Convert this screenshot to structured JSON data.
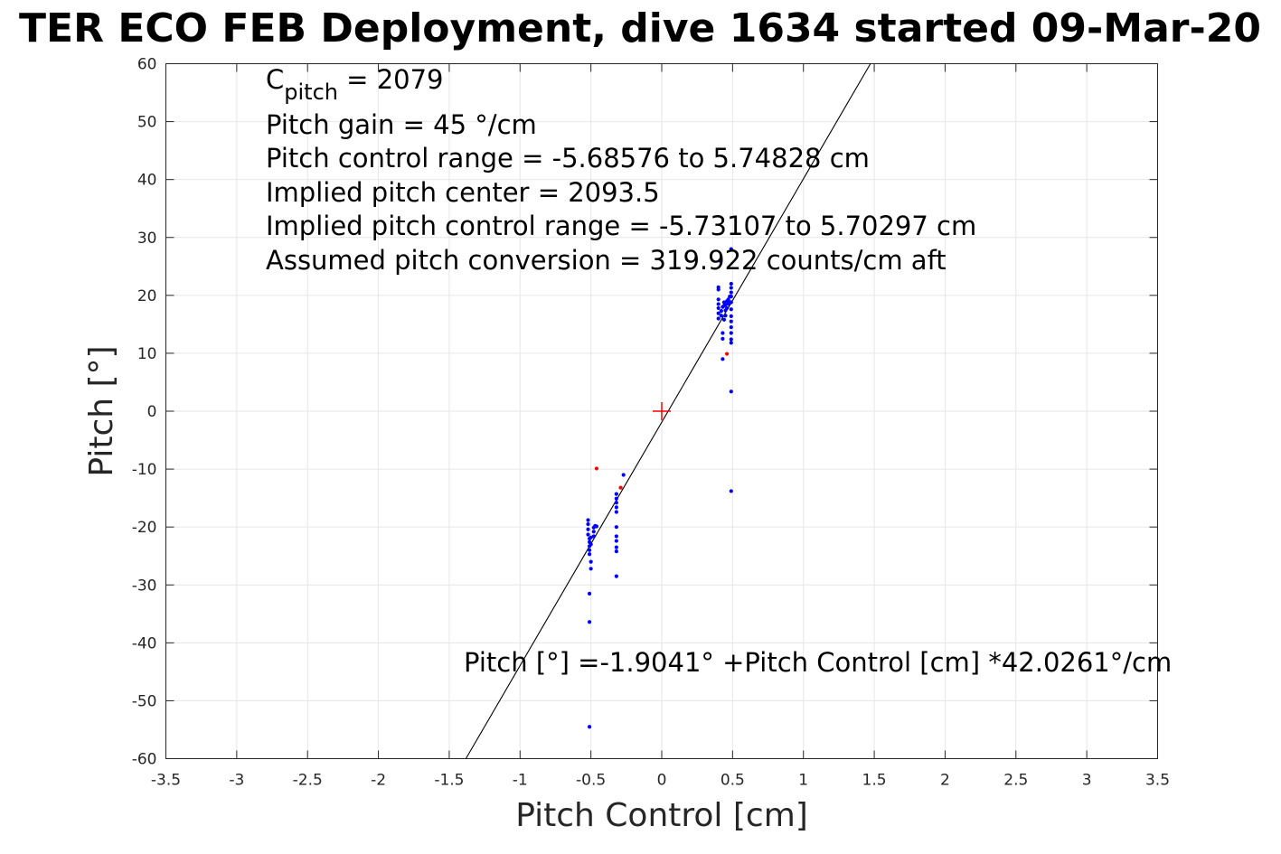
{
  "chart_data": {
    "type": "scatter",
    "title": "TER ECO FEB Deployment, dive 1634 started 09-Mar-20",
    "xlabel": "Pitch Control [cm]",
    "ylabel": "Pitch [°]",
    "xlim": [
      -3.5,
      3.5
    ],
    "ylim": [
      -60,
      60
    ],
    "grid": true,
    "xticks": [
      "-3.5",
      "-3",
      "-2.5",
      "-2",
      "-1.5",
      "-1",
      "-0.5",
      "0",
      "0.5",
      "1",
      "1.5",
      "2",
      "2.5",
      "3",
      "3.5"
    ],
    "yticks": [
      "60",
      "50",
      "40",
      "30",
      "20",
      "10",
      "0",
      "-10",
      "-20",
      "-30",
      "-40",
      "-50",
      "-60"
    ],
    "annotations": {
      "cpitch_base": "C",
      "cpitch_sub": "pitch",
      "cpitch_value": " = 2079",
      "line2": "Pitch gain = 45 °/cm",
      "line3": "Pitch control range = -5.68576 to 5.74828 cm",
      "line4": "Implied pitch center = 2093.5",
      "line5": "Implied pitch control range = -5.73107 to 5.70297 cm",
      "line6": "Assumed pitch conversion = 319.922 counts/cm aft",
      "fit_label": "Pitch [°] =-1.9041° +Pitch Control [cm] *42.0261°/cm"
    },
    "fit": {
      "intercept": -1.9041,
      "slope": 42.0261,
      "color": "#000000"
    },
    "center_marker": {
      "x": 0,
      "y": 0,
      "color": "#ff0000"
    },
    "series": [
      {
        "color": "#0000ff",
        "points": [
          [
            -0.52,
            -18.8
          ],
          [
            -0.52,
            -19.5
          ],
          [
            -0.52,
            -20.4
          ],
          [
            -0.52,
            -21.3
          ],
          [
            -0.51,
            -22.0
          ],
          [
            -0.51,
            -22.6
          ],
          [
            -0.51,
            -23.3
          ],
          [
            -0.51,
            -24.0
          ],
          [
            -0.51,
            -24.7
          ],
          [
            -0.5,
            -21.8
          ],
          [
            -0.5,
            -23.0
          ],
          [
            -0.5,
            -26.0
          ],
          [
            -0.5,
            -27.2
          ],
          [
            -0.51,
            -31.5
          ],
          [
            -0.51,
            -36.4
          ],
          [
            -0.51,
            -54.5
          ],
          [
            -0.48,
            -20.1
          ],
          [
            -0.48,
            -20.8
          ],
          [
            -0.47,
            -19.8
          ],
          [
            -0.46,
            -19.9
          ],
          [
            -0.48,
            -21.6
          ],
          [
            -0.32,
            -14.3
          ],
          [
            -0.32,
            -15.1
          ],
          [
            -0.32,
            -15.8
          ],
          [
            -0.32,
            -16.6
          ],
          [
            -0.32,
            -17.4
          ],
          [
            -0.32,
            -20.0
          ],
          [
            -0.32,
            -21.6
          ],
          [
            -0.32,
            -22.4
          ],
          [
            -0.32,
            -23.5
          ],
          [
            -0.32,
            -24.2
          ],
          [
            -0.32,
            -28.5
          ],
          [
            -0.27,
            -11.0
          ],
          [
            0.4,
            16.0
          ],
          [
            0.4,
            16.9
          ],
          [
            0.4,
            17.8
          ],
          [
            0.4,
            18.5
          ],
          [
            0.4,
            19.3
          ],
          [
            0.4,
            21.0
          ],
          [
            0.4,
            21.4
          ],
          [
            0.41,
            26.0
          ],
          [
            0.42,
            16.5
          ],
          [
            0.42,
            17.3
          ],
          [
            0.43,
            18.0
          ],
          [
            0.43,
            13.5
          ],
          [
            0.43,
            12.5
          ],
          [
            0.43,
            9.0
          ],
          [
            0.44,
            15.8
          ],
          [
            0.44,
            18.2
          ],
          [
            0.44,
            18.8
          ],
          [
            0.45,
            16.5
          ],
          [
            0.45,
            17.4
          ],
          [
            0.45,
            18.4
          ],
          [
            0.46,
            19.0
          ],
          [
            0.46,
            17.8
          ],
          [
            0.47,
            18.5
          ],
          [
            0.47,
            19.3
          ],
          [
            0.48,
            18.8
          ],
          [
            0.48,
            19.8
          ],
          [
            0.49,
            22.0
          ],
          [
            0.49,
            21.3
          ],
          [
            0.49,
            20.5
          ],
          [
            0.49,
            19.8
          ],
          [
            0.49,
            18.8
          ],
          [
            0.49,
            17.6
          ],
          [
            0.49,
            16.4
          ],
          [
            0.49,
            15.5
          ],
          [
            0.49,
            14.5
          ],
          [
            0.49,
            13.5
          ],
          [
            0.49,
            12.4
          ],
          [
            0.49,
            11.8
          ],
          [
            0.49,
            28.0
          ],
          [
            0.49,
            3.4
          ],
          [
            0.49,
            -13.8
          ]
        ]
      },
      {
        "color": "#ff0000",
        "points": [
          [
            -0.46,
            -9.9
          ],
          [
            -0.29,
            -13.2
          ],
          [
            0.46,
            9.9
          ]
        ]
      }
    ]
  }
}
